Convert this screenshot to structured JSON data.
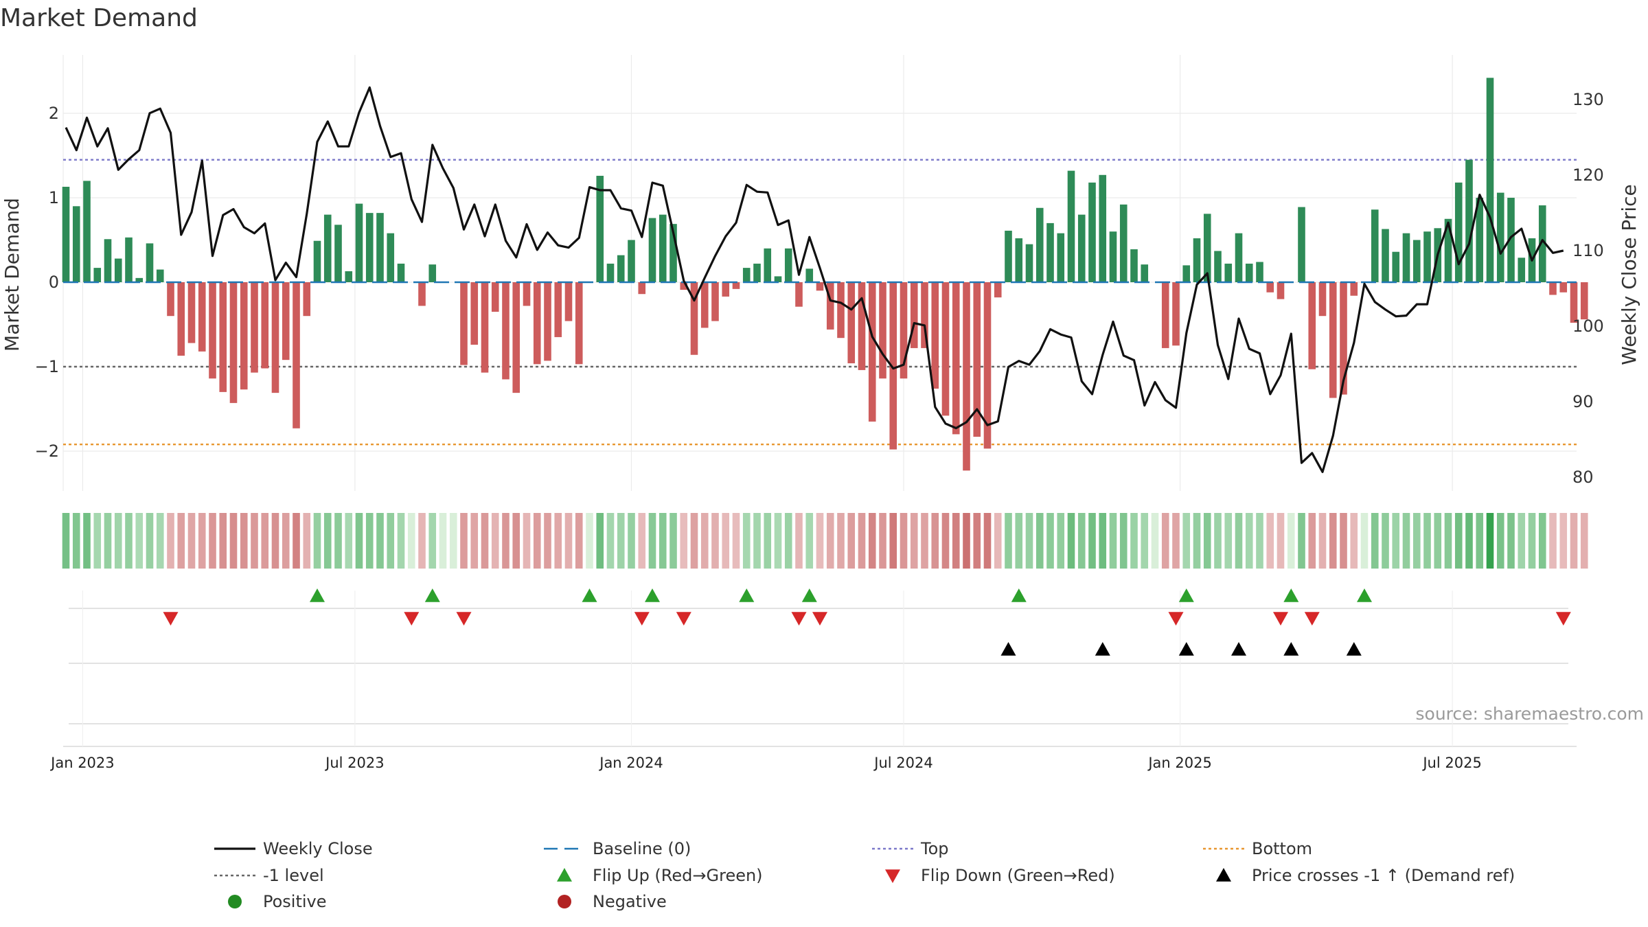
{
  "chart_data": {
    "type": "bar",
    "title": "Market Demand",
    "ylabel": "Market Demand",
    "y2label": "Weekly Close Price",
    "ylim": [
      -2.5,
      2.65
    ],
    "y2lim": [
      78.5,
      135
    ],
    "yticks": [
      {
        "v": 2,
        "label": "2"
      },
      {
        "v": 1,
        "label": "1"
      },
      {
        "v": 0,
        "label": "0"
      },
      {
        "v": -1,
        "label": "−1"
      },
      {
        "v": -2,
        "label": "−2"
      }
    ],
    "y2ticks": [
      {
        "v": 130,
        "label": "130"
      },
      {
        "v": 120,
        "label": "120"
      },
      {
        "v": 110,
        "label": "110"
      },
      {
        "v": 100,
        "label": "100"
      },
      {
        "v": 90,
        "label": "90"
      },
      {
        "v": 80,
        "label": "80"
      }
    ],
    "xticks": [
      {
        "index": 1.6,
        "label": "Jan 2023"
      },
      {
        "index": 27.6,
        "label": "Jul 2023"
      },
      {
        "index": 54,
        "label": "Jan 2024"
      },
      {
        "index": 80,
        "label": "Jul 2024"
      },
      {
        "index": 106.4,
        "label": "Jan 2025"
      },
      {
        "index": 132.4,
        "label": "Jul 2025"
      }
    ],
    "levels": {
      "top": 1.45,
      "minus_one": -1.0,
      "bottom": -1.92
    },
    "demand": [
      1.13,
      0.9,
      1.2,
      0.17,
      0.51,
      0.28,
      0.53,
      0.05,
      0.46,
      0.15,
      -0.4,
      -0.87,
      -0.72,
      -0.82,
      -1.14,
      -1.3,
      -1.43,
      -1.27,
      -1.07,
      -1.02,
      -1.31,
      -0.92,
      -1.73,
      -0.4,
      0.49,
      0.8,
      0.68,
      0.13,
      0.93,
      0.82,
      0.82,
      0.58,
      0.22,
      0.0,
      -0.28,
      0.21,
      0.0,
      0.0,
      -0.98,
      -0.74,
      -1.07,
      -0.35,
      -1.15,
      -1.31,
      -0.28,
      -0.97,
      -0.93,
      -0.65,
      -0.46,
      -0.97,
      0.0,
      1.26,
      0.22,
      0.32,
      0.5,
      -0.14,
      0.76,
      0.8,
      0.69,
      -0.09,
      -0.86,
      -0.54,
      -0.46,
      -0.17,
      -0.08,
      0.17,
      0.22,
      0.4,
      0.07,
      0.4,
      -0.29,
      0.16,
      -0.1,
      -0.56,
      -0.66,
      -0.96,
      -1.04,
      -1.65,
      -1.14,
      -1.98,
      -1.14,
      -0.78,
      -0.78,
      -1.26,
      -1.58,
      -1.8,
      -2.23,
      -1.83,
      -1.97,
      -0.18,
      0.61,
      0.52,
      0.45,
      0.88,
      0.7,
      0.58,
      1.32,
      0.8,
      1.18,
      1.27,
      0.6,
      0.92,
      0.39,
      0.21,
      0.0,
      -0.78,
      -0.75,
      0.2,
      0.52,
      0.81,
      0.37,
      0.22,
      0.58,
      0.22,
      0.24,
      -0.12,
      -0.2,
      0.0,
      0.89,
      -1.03,
      -0.4,
      -1.37,
      -1.33,
      -0.16,
      0.0,
      0.86,
      0.63,
      0.36,
      0.58,
      0.5,
      0.6,
      0.64,
      0.75,
      1.18,
      1.45,
      1.0,
      2.42,
      1.06,
      1.0,
      0.29,
      0.52,
      0.91,
      -0.15,
      -0.12,
      -0.48,
      -0.44
    ],
    "weekly_close": [
      126.3,
      123.3,
      127.6,
      123.8,
      126.2,
      120.7,
      122.1,
      123.3,
      128.2,
      128.8,
      125.6,
      112.1,
      115.1,
      121.9,
      109.3,
      114.7,
      115.5,
      113.1,
      112.3,
      113.6,
      106.1,
      108.4,
      106.5,
      114.9,
      124.4,
      127.1,
      123.8,
      123.8,
      128.3,
      131.6,
      126.5,
      122.4,
      122.9,
      116.8,
      113.8,
      124.0,
      120.9,
      118.3,
      112.8,
      116.1,
      111.9,
      116.1,
      111.3,
      109.1,
      113.5,
      110.1,
      112.4,
      110.7,
      110.4,
      111.7,
      118.4,
      118.0,
      118.0,
      115.6,
      115.3,
      111.8,
      119.0,
      118.6,
      112.4,
      106.0,
      103.4,
      106.4,
      109.3,
      111.9,
      113.7,
      118.7,
      117.8,
      117.7,
      113.4,
      114.0,
      106.8,
      111.8,
      107.7,
      103.4,
      103.1,
      102.2,
      103.7,
      98.6,
      96.3,
      94.4,
      94.9,
      100.4,
      100.1,
      89.3,
      87.1,
      86.5,
      87.3,
      89.0,
      86.9,
      87.4,
      94.6,
      95.4,
      94.9,
      96.7,
      99.6,
      98.9,
      98.5,
      92.7,
      91.0,
      96.2,
      100.6,
      96.1,
      95.5,
      89.5,
      92.6,
      90.2,
      89.2,
      99.1,
      105.5,
      107.0,
      97.5,
      93.0,
      101.0,
      97.0,
      96.4,
      91.0,
      93.5,
      99.0,
      81.9,
      83.2,
      80.7,
      85.5,
      92.8,
      97.8,
      105.6,
      103.2,
      102.2,
      101.3,
      101.4,
      102.9,
      102.9,
      109.5,
      113.7,
      108.2,
      110.9,
      117.4,
      114.4,
      109.6,
      111.8,
      112.9,
      108.7,
      111.4,
      109.7,
      110.0
    ],
    "flips_up": [
      24,
      35,
      50,
      56,
      65,
      71,
      91,
      107,
      117,
      124
    ],
    "flips_down": [
      10,
      33,
      38,
      55,
      59,
      70,
      72,
      106,
      116,
      119,
      143
    ],
    "price_crosses": [
      90,
      99,
      107,
      112,
      117,
      123
    ],
    "legend": [
      {
        "key": "weekly_close",
        "label": "Weekly Close"
      },
      {
        "key": "baseline",
        "label": "Baseline (0)"
      },
      {
        "key": "top",
        "label": "Top"
      },
      {
        "key": "bottom",
        "label": "Bottom"
      },
      {
        "key": "minus_one",
        "label": "-1 level"
      },
      {
        "key": "flip_up",
        "label": "Flip Up (Red→Green)"
      },
      {
        "key": "flip_down",
        "label": "Flip Down (Green→Red)"
      },
      {
        "key": "price_cross",
        "label": "Price crosses -1 ↑ (Demand ref)"
      },
      {
        "key": "positive",
        "label": "Positive"
      },
      {
        "key": "negative",
        "label": "Negative"
      }
    ],
    "source": "source: sharemaestro.com"
  },
  "colors": {
    "positive_bar": "#2e8b57",
    "negative_bar": "#cd5c5c",
    "line": "#111111",
    "baseline": "#1f77b4",
    "top": "#7b78c9",
    "minus_one": "#666666",
    "bottom": "#e8962f",
    "flip_up": "#2ca02c",
    "flip_down": "#d62728",
    "price_cross": "#000000",
    "positive_dot": "#228b22",
    "negative_dot": "#b22222"
  }
}
